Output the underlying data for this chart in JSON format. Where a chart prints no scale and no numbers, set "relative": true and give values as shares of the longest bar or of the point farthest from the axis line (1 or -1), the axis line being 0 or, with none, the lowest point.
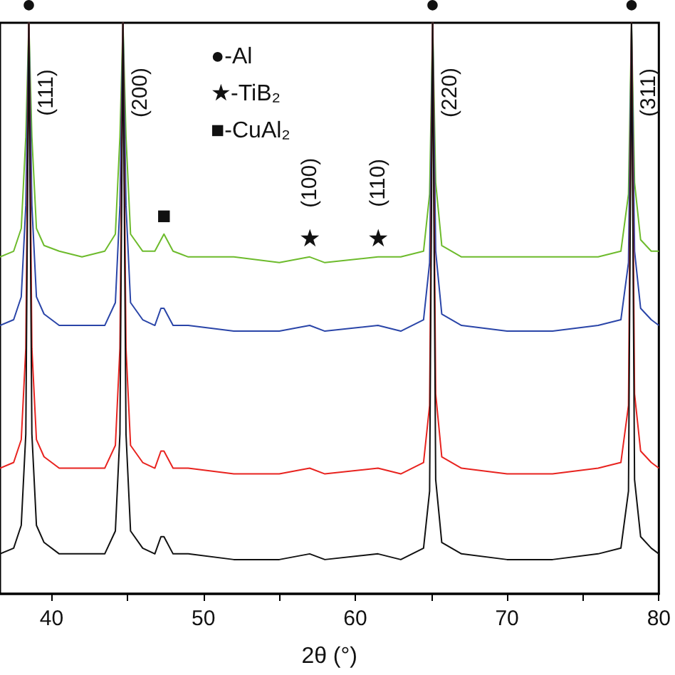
{
  "chart_data": {
    "type": "line",
    "relative": true,
    "xlabel": "2θ (°)",
    "xlim": [
      36.6,
      80
    ],
    "xticks": [
      40,
      {
        "value": 45,
        "label": null
      },
      50,
      {
        "value": 55,
        "label": null
      },
      60,
      {
        "value": 65,
        "label": null
      },
      70,
      {
        "value": 75,
        "label": null
      },
      80
    ],
    "x": [
      36.6,
      37.5,
      38.0,
      38.3,
      38.5,
      38.7,
      39.0,
      39.5,
      40.5,
      42,
      43.5,
      44.2,
      44.5,
      44.7,
      44.9,
      45.2,
      46,
      46.8,
      47.2,
      47.4,
      47.6,
      48,
      49,
      52,
      55,
      57,
      58,
      61.5,
      63,
      64.5,
      64.9,
      65.1,
      65.3,
      65.7,
      67,
      70,
      73,
      76,
      77.5,
      78.0,
      78.2,
      78.4,
      78.8,
      79.5,
      80
    ],
    "series": [
      {
        "color": "#6dbb2c",
        "values": [
          0.59,
          0.6,
          0.64,
          0.8,
          1,
          0.8,
          0.64,
          0.61,
          0.6,
          0.59,
          0.6,
          0.63,
          0.8,
          1,
          0.8,
          0.63,
          0.6,
          0.6,
          0.62,
          0.63,
          0.62,
          0.6,
          0.59,
          0.59,
          0.58,
          0.59,
          0.58,
          0.59,
          0.59,
          0.6,
          0.7,
          1,
          0.72,
          0.61,
          0.59,
          0.59,
          0.59,
          0.59,
          0.6,
          0.7,
          1,
          0.72,
          0.62,
          0.6,
          0.6
        ]
      },
      {
        "color": "#2a45a8",
        "values": [
          0.47,
          0.48,
          0.52,
          0.68,
          1,
          0.68,
          0.52,
          0.49,
          0.47,
          0.47,
          0.47,
          0.51,
          0.68,
          1,
          0.68,
          0.51,
          0.48,
          0.47,
          0.5,
          0.5,
          0.49,
          0.47,
          0.47,
          0.46,
          0.46,
          0.47,
          0.46,
          0.47,
          0.46,
          0.48,
          0.58,
          1,
          0.6,
          0.49,
          0.47,
          0.46,
          0.46,
          0.47,
          0.48,
          0.58,
          1,
          0.6,
          0.5,
          0.48,
          0.47
        ]
      },
      {
        "color": "#e8231f",
        "values": [
          0.22,
          0.23,
          0.27,
          0.43,
          1,
          0.43,
          0.27,
          0.24,
          0.22,
          0.22,
          0.22,
          0.26,
          0.43,
          1,
          0.43,
          0.26,
          0.23,
          0.22,
          0.25,
          0.25,
          0.24,
          0.22,
          0.22,
          0.21,
          0.21,
          0.22,
          0.21,
          0.22,
          0.21,
          0.23,
          0.33,
          1,
          0.35,
          0.24,
          0.22,
          0.21,
          0.21,
          0.22,
          0.23,
          0.33,
          1,
          0.35,
          0.25,
          0.23,
          0.22
        ]
      },
      {
        "color": "#111111",
        "values": [
          0.07,
          0.08,
          0.12,
          0.28,
          1,
          0.28,
          0.12,
          0.09,
          0.07,
          0.07,
          0.07,
          0.11,
          0.28,
          1,
          0.28,
          0.11,
          0.08,
          0.07,
          0.1,
          0.1,
          0.09,
          0.07,
          0.07,
          0.06,
          0.06,
          0.07,
          0.06,
          0.07,
          0.06,
          0.08,
          0.18,
          1,
          0.2,
          0.09,
          0.07,
          0.06,
          0.06,
          0.07,
          0.08,
          0.18,
          1,
          0.2,
          0.1,
          0.08,
          0.07
        ]
      }
    ],
    "annotations": [
      "●-Al",
      "★-TiB₂",
      "■-CuAl₂",
      {
        "text": "(111)",
        "x": 38.5,
        "y": 1
      },
      {
        "text": "(200)",
        "x": 44.7,
        "y": 1
      },
      {
        "text": "(220)",
        "x": 65.1,
        "y": 1
      },
      {
        "text": "(311)",
        "x": 78.2,
        "y": 1
      },
      {
        "text": "(100)",
        "x": 57,
        "y": 0.59
      },
      {
        "text": "(110)",
        "x": 61.5,
        "y": 0.59
      },
      {
        "text": "●",
        "x": 38.5,
        "y": 1
      },
      {
        "text": "●",
        "x": 65.1,
        "y": 1
      },
      {
        "text": "●",
        "x": 78.2,
        "y": 1
      },
      {
        "text": "■",
        "x": 47.4,
        "y": 0.63
      },
      {
        "text": "★",
        "x": 57,
        "y": 0.59
      },
      {
        "text": "★",
        "x": 61.5,
        "y": 0.59
      }
    ]
  }
}
